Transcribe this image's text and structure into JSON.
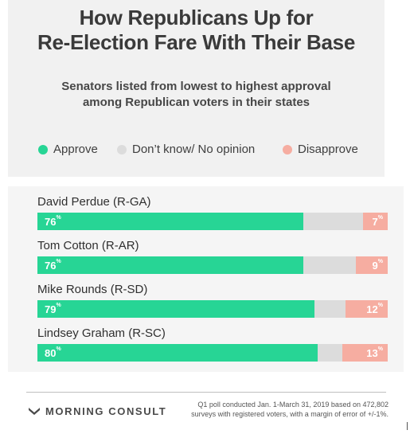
{
  "header": {
    "title_line1": "How Republicans Up for",
    "title_line2": "Re-Election Fare With Their Base",
    "subtitle_line1": "Senators listed from lowest to highest approval",
    "subtitle_line2": "among Republican voters in their states"
  },
  "legend": [
    {
      "label": "Approve",
      "color": "#27d595"
    },
    {
      "label": "Don’t know/ No opinion",
      "color": "#dcdcdc"
    },
    {
      "label": "Disapprove",
      "color": "#f6ada1"
    }
  ],
  "chart_data": {
    "type": "bar",
    "stacked": true,
    "orientation": "horizontal",
    "categories": [
      "David Perdue (R-GA)",
      "Tom Cotton (R-AR)",
      "Mike Rounds (R-SD)",
      "Lindsey Graham (R-SC)"
    ],
    "series": [
      {
        "name": "Approve",
        "values": [
          76,
          76,
          79,
          80
        ],
        "labels": [
          "76",
          "76",
          "79",
          "80"
        ]
      },
      {
        "name": "Don’t know/ No opinion",
        "values": [
          17,
          15,
          9,
          7
        ],
        "labels": [
          "",
          "",
          "",
          ""
        ]
      },
      {
        "name": "Disapprove",
        "values": [
          7,
          9,
          12,
          13
        ],
        "labels": [
          "7",
          "9",
          "12",
          "13"
        ]
      }
    ],
    "percent_sign": "%",
    "xlim": [
      0,
      100
    ]
  },
  "footer": {
    "brand": "MORNING CONSULT",
    "note_line1": "Q1 poll conducted Jan. 1-March 31, 2019 based on 472,802",
    "note_line2": "surveys with registered voters, with a margin of error of +/-1%."
  }
}
